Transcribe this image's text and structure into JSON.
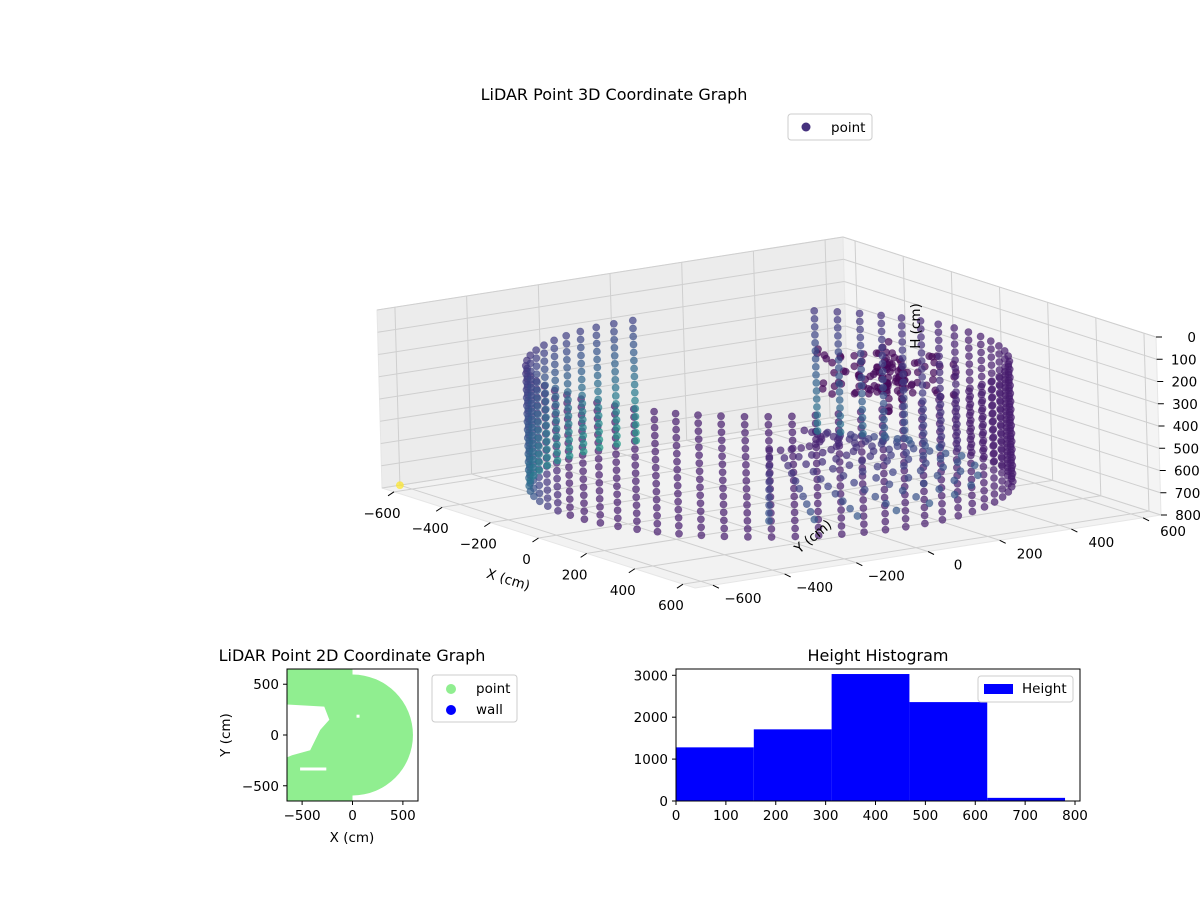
{
  "chart_data": [
    {
      "type": "scatter3d",
      "title": "LiDAR Point 3D Coordinate Graph",
      "xlabel": "X (cm)",
      "ylabel": "Y (cm)",
      "zlabel": "H (cm)",
      "x_ticks": [
        -600,
        -400,
        -200,
        0,
        200,
        400,
        600
      ],
      "y_ticks": [
        -600,
        -400,
        -200,
        0,
        200,
        400,
        600
      ],
      "z_ticks": [
        0,
        100,
        200,
        300,
        400,
        500,
        600,
        700,
        800
      ],
      "xlim": [
        -650,
        650
      ],
      "ylim": [
        -650,
        650
      ],
      "zlim": [
        0,
        800
      ],
      "z_inverted": true,
      "legend": [
        "point"
      ],
      "legend_position": "top-right",
      "colormap": "viridis",
      "point_color": "#46327e",
      "grid": true
    },
    {
      "type": "scatter",
      "title": "LiDAR Point 2D Coordinate Graph",
      "xlabel": "X (cm)",
      "ylabel": "Y (cm)",
      "x_ticks": [
        -500,
        0,
        500
      ],
      "y_ticks": [
        500,
        0,
        -500
      ],
      "xlim": [
        -650,
        650
      ],
      "ylim": [
        -650,
        650
      ],
      "series": [
        {
          "name": "point",
          "color": "#90ee90"
        },
        {
          "name": "wall",
          "color": "#0000ff"
        }
      ],
      "legend_position": "outside-right"
    },
    {
      "type": "bar",
      "title": "Height Histogram",
      "x_ticks": [
        0,
        100,
        200,
        300,
        400,
        500,
        600,
        700,
        800
      ],
      "y_ticks": [
        0,
        1000,
        2000,
        3000
      ],
      "xlim": [
        0,
        810
      ],
      "ylim": [
        0,
        3150
      ],
      "bins": [
        [
          0,
          156
        ],
        [
          156,
          312
        ],
        [
          312,
          468
        ],
        [
          468,
          624
        ],
        [
          624,
          780
        ]
      ],
      "values": [
        1280,
        1710,
        3030,
        2360,
        75
      ],
      "color": "#0000ff",
      "series": [
        {
          "name": "Height"
        }
      ],
      "legend_position": "top-right"
    }
  ]
}
